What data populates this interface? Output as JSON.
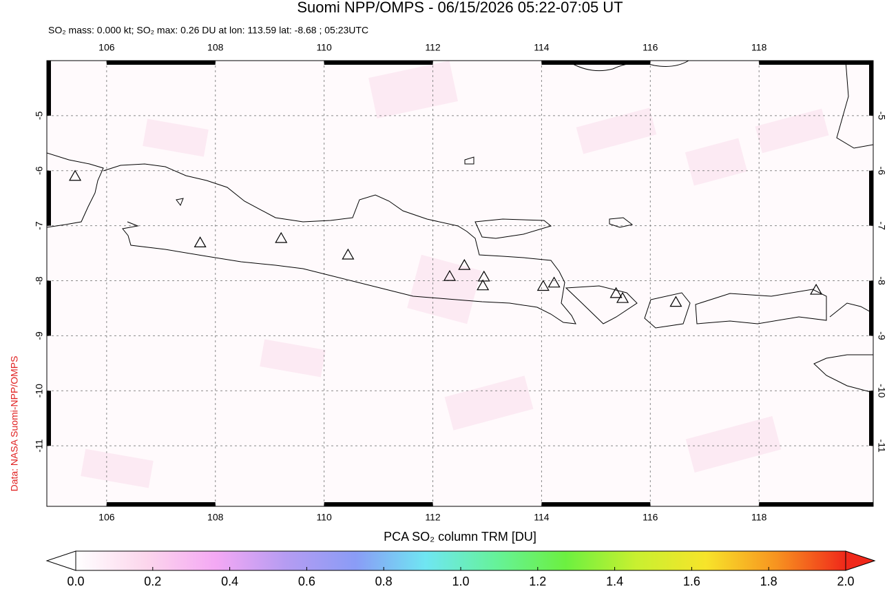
{
  "chart_data": {
    "type": "map",
    "title": "Suomi NPP/OMPS - 06/15/2026 05:22-07:05 UT",
    "subtitle": "SO₂ mass: 0.000 kt; SO₂ max: 0.26 DU at lon: 113.59 lat: -8.68 ; 05:23UTC",
    "credit": "Data: NASA Suomi-NPP/OMPS",
    "xlim": [
      104.9,
      120.1
    ],
    "ylim": [
      -12.1,
      -4
    ],
    "xticks": [
      106,
      108,
      110,
      112,
      114,
      116,
      118
    ],
    "yticks": [
      -5,
      -6,
      -7,
      -8,
      -9,
      -10,
      -11
    ],
    "grid": true,
    "volcanoes": {
      "x": [
        105.42,
        107.72,
        109.21,
        110.44,
        112.31,
        112.58,
        112.94,
        112.92,
        114.03,
        114.23,
        115.37,
        115.49,
        116.47,
        119.05
      ],
      "y": [
        -6.1,
        -7.31,
        -7.23,
        -7.53,
        -7.92,
        -7.72,
        -7.93,
        -8.09,
        -8.1,
        -8.04,
        -8.23,
        -8.32,
        -8.39,
        -8.17
      ]
    },
    "colorbar": {
      "label": "PCA SO₂ column TRM [DU]",
      "lim": [
        0,
        2
      ],
      "ticks": [
        {
          "value": 0,
          "label": "0.0"
        },
        0.2,
        0.4,
        0.6,
        0.8,
        {
          "value": 1,
          "label": "1.0"
        },
        1.2,
        1.4,
        1.6,
        1.8,
        {
          "value": 2,
          "label": "2.0"
        }
      ],
      "colors": [
        "#ffffff",
        "#fcd6ec",
        "#f4a8f4",
        "#b59cf2",
        "#8a9cf6",
        "#6fe6f2",
        "#66f29a",
        "#6cf040",
        "#c8f030",
        "#f7e42a",
        "#f79420",
        "#f0281a"
      ]
    }
  }
}
